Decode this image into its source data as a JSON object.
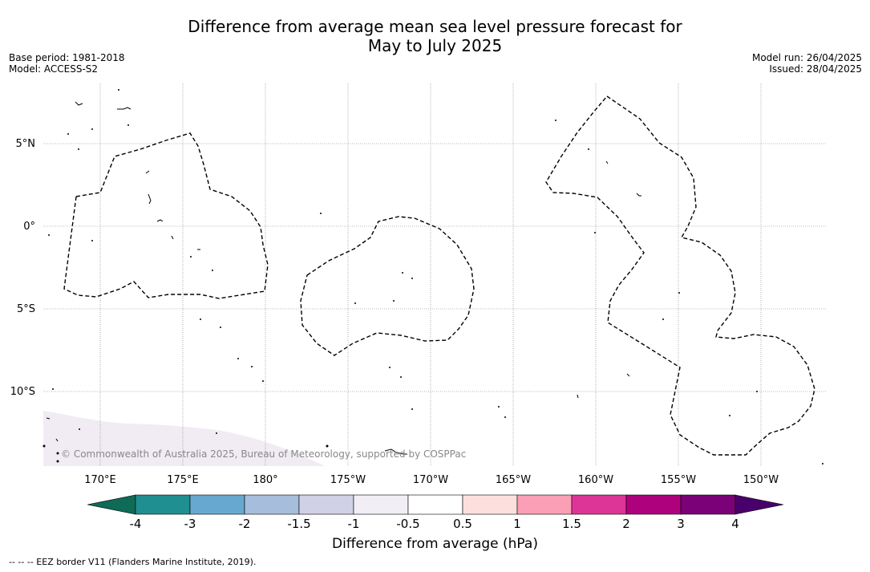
{
  "title": {
    "line1": "Difference from average mean sea level pressure forecast for",
    "line2": "May to July 2025"
  },
  "meta_left": {
    "base_period": "Base period: 1981-2018",
    "model": "Model: ACCESS-S2"
  },
  "meta_right": {
    "model_run": "Model run: 26/04/2025",
    "issued": "Issued: 28/04/2025"
  },
  "map": {
    "lat_labels": [
      "5°N",
      "0°",
      "5°S",
      "10°S"
    ],
    "lon_labels": [
      "170°E",
      "175°E",
      "180°",
      "175°W",
      "170°W",
      "165°W",
      "160°W",
      "155°W",
      "150°W"
    ],
    "copyright": "© Commonwealth of Australia 2025, Bureau of Meteorology, supported by COSPPac",
    "field_color": "#f1ebf3",
    "border_style": "dashed"
  },
  "colorbar": {
    "title": "Difference from average (hPa)",
    "tick_labels": [
      "-4",
      "-3",
      "-2",
      "-1.5",
      "-1",
      "-0.5",
      "0.5",
      "1",
      "1.5",
      "2",
      "3",
      "4"
    ],
    "colors": [
      "#1f8f91",
      "#66a8cf",
      "#a6bddb",
      "#d0d1e6",
      "#f1eef6",
      "#ffffff",
      "#fde0dd",
      "#fa9fb5",
      "#dd3497",
      "#ae017e",
      "#7a0177"
    ],
    "under_color": "#0f6b57",
    "over_color": "#49006a"
  },
  "footnote": "--  --  -- EEZ border V11 (Flanders Marine Institute, 2019)."
}
